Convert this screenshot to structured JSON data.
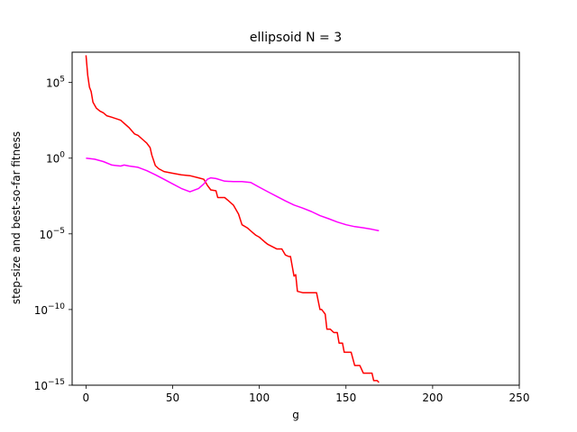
{
  "chart_data": {
    "type": "line",
    "title": "ellipsoid N = 3",
    "xlabel": "g",
    "ylabel": "step-size and best-so-far fitness",
    "xlim": [
      -8,
      250
    ],
    "ylim": [
      1e-15,
      10000000.0
    ],
    "yscale": "log",
    "xticks": [
      {
        "value": 0,
        "label": "0"
      },
      {
        "value": 50,
        "label": "50"
      },
      {
        "value": 100,
        "label": "100"
      },
      {
        "value": 150,
        "label": "150"
      },
      {
        "value": 200,
        "label": "200"
      },
      {
        "value": 250,
        "label": "250"
      }
    ],
    "yticks": [
      {
        "value": 100000.0,
        "base": "10",
        "exp": "5"
      },
      {
        "value": 1,
        "label": "10",
        "base": "10",
        "exp": "0"
      },
      {
        "value": 1e-05,
        "base": "10",
        "exp": "−5"
      },
      {
        "value": 1e-10,
        "base": "10",
        "exp": "−10"
      },
      {
        "value": 1e-15,
        "base": "10",
        "exp": "−15"
      }
    ],
    "grid": false,
    "legend": "none",
    "series": [
      {
        "color": "#ff0000",
        "x": [
          0,
          1,
          2,
          3,
          4,
          6,
          8,
          10,
          12,
          15,
          20,
          22,
          25,
          28,
          30,
          33,
          35,
          37,
          38,
          40,
          42,
          45,
          50,
          55,
          60,
          65,
          68,
          70,
          72,
          75,
          76,
          80,
          82,
          85,
          88,
          90,
          93,
          95,
          98,
          100,
          103,
          105,
          110,
          113,
          115,
          117,
          118,
          120,
          121,
          122,
          125,
          128,
          130,
          133,
          135,
          136,
          138,
          139,
          141,
          143,
          145,
          146,
          148,
          149,
          151,
          153,
          155,
          157,
          158,
          160,
          161,
          163,
          165,
          166,
          168,
          169
        ],
        "y": [
          6300000.0,
          300000.0,
          50000.0,
          25000.0,
          5000.0,
          2000.0,
          1300.0,
          1000.0,
          630.0,
          500.0,
          320.0,
          200.0,
          100.0,
          40.0,
          32.0,
          16.0,
          10.0,
          5,
          1.6,
          0.32,
          0.2,
          0.13,
          0.1,
          0.08,
          0.07,
          0.05,
          0.04,
          0.016,
          0.008,
          0.007,
          0.0025,
          0.0025,
          0.0016,
          0.0008,
          0.0002,
          4e-05,
          2.5e-05,
          1.6e-05,
          8e-06,
          6e-06,
          3e-06,
          2e-06,
          1e-06,
          1e-06,
          4e-07,
          3.2e-07,
          3.2e-07,
          1.6e-08,
          2e-08,
          1.6e-09,
          1.3e-09,
          1.3e-09,
          1.3e-09,
          1.3e-09,
          1e-10,
          1e-10,
          5e-11,
          5e-12,
          5e-12,
          3e-12,
          3e-12,
          6e-13,
          6e-13,
          1.5e-13,
          1.5e-13,
          1.5e-13,
          2e-14,
          2e-14,
          2e-14,
          6.3e-15,
          6.3e-15,
          6.3e-15,
          6.3e-15,
          2e-15,
          2e-15,
          1.5e-15
        ]
      },
      {
        "color": "#ff00ff",
        "x": [
          0,
          5,
          10,
          15,
          20,
          22,
          25,
          30,
          35,
          40,
          45,
          50,
          55,
          60,
          65,
          68,
          70,
          72,
          75,
          80,
          85,
          90,
          95,
          100,
          105,
          110,
          115,
          120,
          125,
          130,
          135,
          140,
          145,
          150,
          155,
          160,
          165,
          169
        ],
        "y": [
          1,
          0.85,
          0.6,
          0.35,
          0.3,
          0.35,
          0.3,
          0.25,
          0.15,
          0.08,
          0.04,
          0.02,
          0.01,
          0.006,
          0.01,
          0.02,
          0.04,
          0.05,
          0.045,
          0.03,
          0.028,
          0.028,
          0.025,
          0.012,
          0.006,
          0.003,
          0.0015,
          0.0008,
          0.0005,
          0.0003,
          0.00016,
          0.0001,
          6e-05,
          4e-05,
          3e-05,
          2.5e-05,
          2e-05,
          1.6e-05
        ]
      }
    ]
  }
}
